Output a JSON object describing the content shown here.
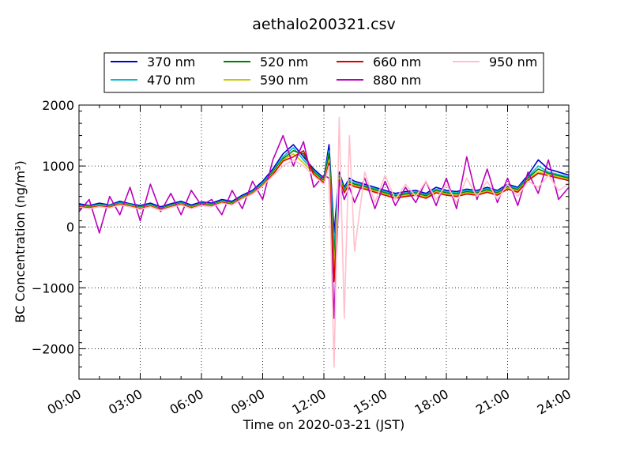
{
  "chart_data": {
    "type": "line",
    "title": "aethalo200321.csv",
    "xlabel": "Time on 2020-03-21 (JST)",
    "ylabel": "BC Concentration (ng/m³)",
    "xlim": [
      "00:00",
      "24:00"
    ],
    "ylim": [
      -2500,
      2000
    ],
    "x_ticks": [
      "00:00",
      "03:00",
      "06:00",
      "09:00",
      "12:00",
      "15:00",
      "18:00",
      "21:00",
      "24:00"
    ],
    "y_ticks": [
      -2000,
      -1000,
      0,
      1000,
      2000
    ],
    "grid": true,
    "legend_position": "top-center",
    "x_hours": [
      0,
      0.5,
      1,
      1.5,
      2,
      2.5,
      3,
      3.5,
      4,
      4.5,
      5,
      5.5,
      6,
      6.5,
      7,
      7.5,
      8,
      8.5,
      9,
      9.5,
      10,
      10.5,
      11,
      11.5,
      12,
      12.25,
      12.5,
      12.75,
      13,
      13.25,
      13.5,
      14,
      14.5,
      15,
      15.5,
      16,
      16.5,
      17,
      17.5,
      18,
      18.5,
      19,
      19.5,
      20,
      20.5,
      21,
      21.5,
      22,
      22.5,
      23,
      23.5,
      24
    ],
    "series": [
      {
        "name": "370 nm",
        "color": "#0000cc",
        "values": [
          380,
          350,
          390,
          360,
          420,
          380,
          350,
          390,
          330,
          380,
          420,
          360,
          410,
          390,
          450,
          420,
          520,
          600,
          750,
          950,
          1200,
          1350,
          1150,
          950,
          800,
          1350,
          -100,
          900,
          650,
          800,
          750,
          700,
          650,
          600,
          550,
          580,
          600,
          550,
          650,
          600,
          580,
          620,
          600,
          650,
          600,
          700,
          650,
          850,
          1100,
          950,
          900,
          850
        ]
      },
      {
        "name": "470 nm",
        "color": "#00bcd4",
        "values": [
          360,
          340,
          370,
          350,
          400,
          370,
          330,
          370,
          310,
          360,
          400,
          340,
          390,
          370,
          430,
          400,
          500,
          580,
          720,
          920,
          1150,
          1300,
          1100,
          920,
          780,
          1250,
          -300,
          850,
          620,
          760,
          720,
          680,
          630,
          580,
          530,
          560,
          580,
          530,
          620,
          580,
          560,
          600,
          580,
          630,
          580,
          680,
          630,
          820,
          1000,
          900,
          860,
          820
        ]
      },
      {
        "name": "520 nm",
        "color": "#008000",
        "values": [
          350,
          330,
          360,
          340,
          390,
          360,
          320,
          360,
          300,
          350,
          390,
          330,
          380,
          360,
          420,
          390,
          490,
          570,
          700,
          900,
          1120,
          1250,
          1200,
          900,
          760,
          1200,
          -500,
          830,
          600,
          740,
          700,
          660,
          610,
          560,
          510,
          540,
          560,
          510,
          600,
          560,
          540,
          580,
          560,
          610,
          560,
          660,
          610,
          800,
          950,
          880,
          840,
          800
        ]
      },
      {
        "name": "590 nm",
        "color": "#c8c800",
        "values": [
          340,
          320,
          350,
          330,
          380,
          350,
          310,
          350,
          290,
          340,
          380,
          320,
          370,
          350,
          410,
          380,
          480,
          560,
          690,
          880,
          1100,
          1200,
          1050,
          880,
          740,
          1100,
          -700,
          800,
          580,
          720,
          680,
          640,
          590,
          540,
          490,
          520,
          540,
          490,
          580,
          540,
          520,
          560,
          540,
          590,
          540,
          640,
          590,
          780,
          900,
          860,
          820,
          780
        ]
      },
      {
        "name": "660 nm",
        "color": "#dd0000",
        "values": [
          330,
          310,
          340,
          320,
          370,
          340,
          300,
          340,
          280,
          330,
          370,
          310,
          360,
          340,
          400,
          370,
          470,
          550,
          680,
          860,
          1080,
          1150,
          1250,
          860,
          720,
          1050,
          -900,
          780,
          560,
          700,
          660,
          620,
          570,
          520,
          470,
          500,
          520,
          470,
          560,
          520,
          500,
          540,
          520,
          570,
          520,
          620,
          570,
          760,
          880,
          840,
          800,
          760
        ]
      },
      {
        "name": "880 nm",
        "color": "#bb00bb",
        "values": [
          250,
          450,
          -100,
          500,
          200,
          650,
          100,
          700,
          250,
          550,
          200,
          600,
          350,
          450,
          200,
          600,
          300,
          750,
          450,
          1100,
          1500,
          1000,
          1400,
          650,
          850,
          800,
          -1500,
          750,
          450,
          650,
          400,
          800,
          300,
          750,
          350,
          650,
          400,
          750,
          350,
          800,
          300,
          1150,
          450,
          950,
          400,
          800,
          350,
          900,
          550,
          1100,
          450,
          650
        ]
      },
      {
        "name": "950 nm",
        "color": "#ffc0cb",
        "values": [
          320,
          300,
          330,
          310,
          360,
          330,
          290,
          330,
          270,
          320,
          360,
          300,
          350,
          330,
          390,
          360,
          460,
          540,
          670,
          840,
          1000,
          1100,
          1000,
          840,
          700,
          1000,
          -2300,
          1800,
          -1500,
          1500,
          -400,
          900,
          400,
          850,
          450,
          700,
          500,
          750,
          450,
          700,
          400,
          800,
          500,
          750,
          450,
          700,
          500,
          750,
          650,
          850,
          600,
          700
        ]
      }
    ]
  }
}
